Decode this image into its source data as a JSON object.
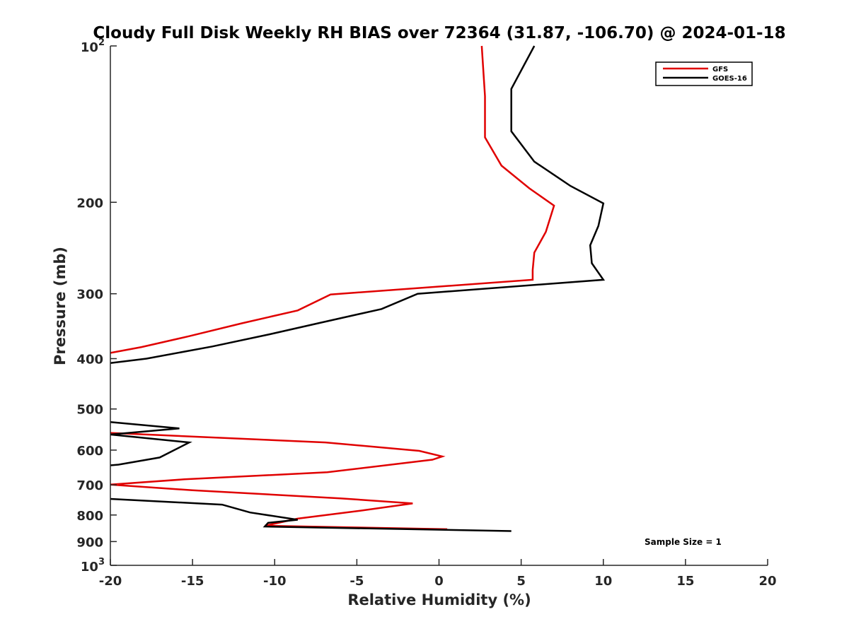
{
  "chart_data": {
    "type": "line",
    "title": "Cloudy Full Disk Weekly RH BIAS over 72364 (31.87, -106.70) @ 2024-01-18",
    "xlabel": "Relative Humidity (%)",
    "ylabel": "Pressure (mb)",
    "xlim": [
      -20,
      20
    ],
    "ylim": [
      100,
      1000
    ],
    "y_scale": "log",
    "y_reversed": true,
    "grid": false,
    "legend_position": "top-right",
    "x_ticks": [
      "-20",
      "-15",
      "-10",
      "-5",
      "0",
      "5",
      "10",
      "15",
      "20"
    ],
    "x_tick_values": [
      -20,
      -15,
      -10,
      -5,
      0,
      5,
      10,
      15,
      20
    ],
    "y_ticks": [
      {
        "value": 100,
        "base": "10",
        "exp": "2"
      },
      {
        "value": 200,
        "label": "200"
      },
      {
        "value": 300,
        "label": "300"
      },
      {
        "value": 400,
        "label": "400"
      },
      {
        "value": 500,
        "label": "500"
      },
      {
        "value": 600,
        "label": "600"
      },
      {
        "value": 700,
        "label": "700"
      },
      {
        "value": 800,
        "label": "800"
      },
      {
        "value": 900,
        "label": "900"
      },
      {
        "value": 1000,
        "base": "10",
        "exp": "3"
      }
    ],
    "annotation": "Sample Size = 1",
    "series": [
      {
        "name": "GFS",
        "color": "#e00000",
        "points": [
          [
            2.6,
            100
          ],
          [
            2.8,
            125
          ],
          [
            2.8,
            150
          ],
          [
            3.8,
            170
          ],
          [
            5.5,
            188
          ],
          [
            7.0,
            203
          ],
          [
            6.5,
            228
          ],
          [
            5.8,
            250
          ],
          [
            5.7,
            270
          ],
          [
            5.7,
            282
          ],
          [
            -6.6,
            301
          ],
          [
            -8.6,
            323
          ],
          [
            -12.0,
            342
          ],
          [
            -15.2,
            362
          ],
          [
            -18.1,
            380
          ],
          [
            -20.0,
            390
          ],
          [
            null,
            null
          ],
          [
            -20.0,
            556
          ],
          [
            -6.9,
            580
          ],
          [
            -1.2,
            602
          ],
          [
            0.2,
            617
          ],
          [
            -0.4,
            626
          ],
          [
            -6.8,
            662
          ],
          [
            -15.5,
            683
          ],
          [
            -20.0,
            699
          ],
          [
            -15.0,
            717
          ],
          [
            -6.0,
            743
          ],
          [
            -1.6,
            760
          ],
          [
            -4.8,
            785
          ],
          [
            -8.6,
            813
          ],
          [
            -10.6,
            839
          ],
          [
            0.5,
            852
          ]
        ]
      },
      {
        "name": "GOES-16",
        "color": "#000000",
        "points": [
          [
            5.8,
            100
          ],
          [
            4.4,
            121
          ],
          [
            4.4,
            146
          ],
          [
            5.8,
            167
          ],
          [
            8.0,
            186
          ],
          [
            10.0,
            201
          ],
          [
            9.7,
            222
          ],
          [
            9.2,
            242
          ],
          [
            9.3,
            262
          ],
          [
            10.0,
            282
          ],
          [
            -1.3,
            300
          ],
          [
            -3.5,
            321
          ],
          [
            -7.2,
            341
          ],
          [
            -10.3,
            359
          ],
          [
            -13.8,
            379
          ],
          [
            -17.8,
            400
          ],
          [
            -20.0,
            408
          ],
          [
            null,
            null
          ],
          [
            -20.0,
            530
          ],
          [
            -15.8,
            545
          ],
          [
            -20.0,
            560
          ],
          [
            -15.2,
            580
          ],
          [
            -17.0,
            620
          ],
          [
            -19.5,
            640
          ],
          [
            -20.0,
            642
          ],
          [
            null,
            null
          ],
          [
            -20.0,
            745
          ],
          [
            -13.2,
            764
          ],
          [
            -11.5,
            791
          ],
          [
            -8.6,
            817
          ],
          [
            -10.4,
            828
          ],
          [
            -10.6,
            842
          ],
          [
            4.4,
            859
          ]
        ]
      }
    ]
  }
}
